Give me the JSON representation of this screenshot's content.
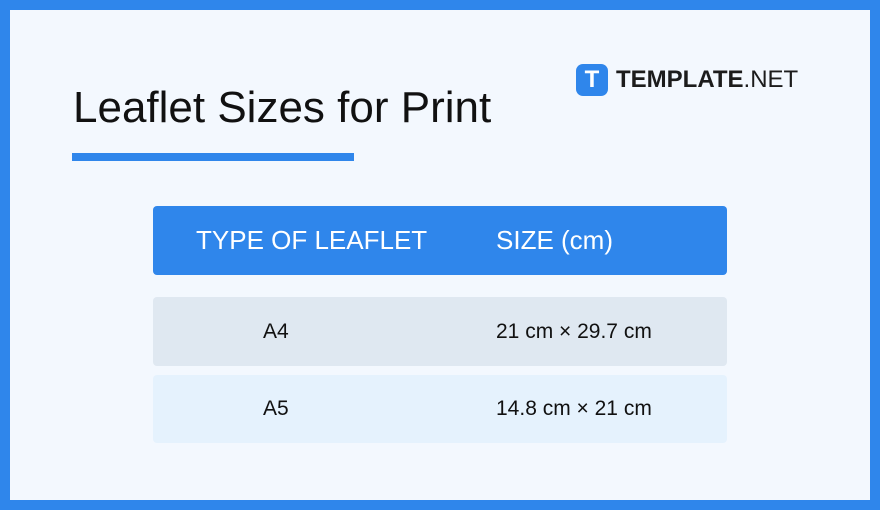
{
  "title": "Leaflet Sizes for Print",
  "logo": {
    "mark": "T",
    "bold": "TEMPLATE",
    "rest": ".NET"
  },
  "table": {
    "headers": [
      "TYPE OF LEAFLET",
      "SIZE (cm)"
    ],
    "rows": [
      [
        "A4",
        "21 cm × 29.7 cm"
      ],
      [
        "A5",
        "14.8 cm × 21 cm"
      ]
    ]
  },
  "colors": {
    "accent": "#2f86eb"
  }
}
